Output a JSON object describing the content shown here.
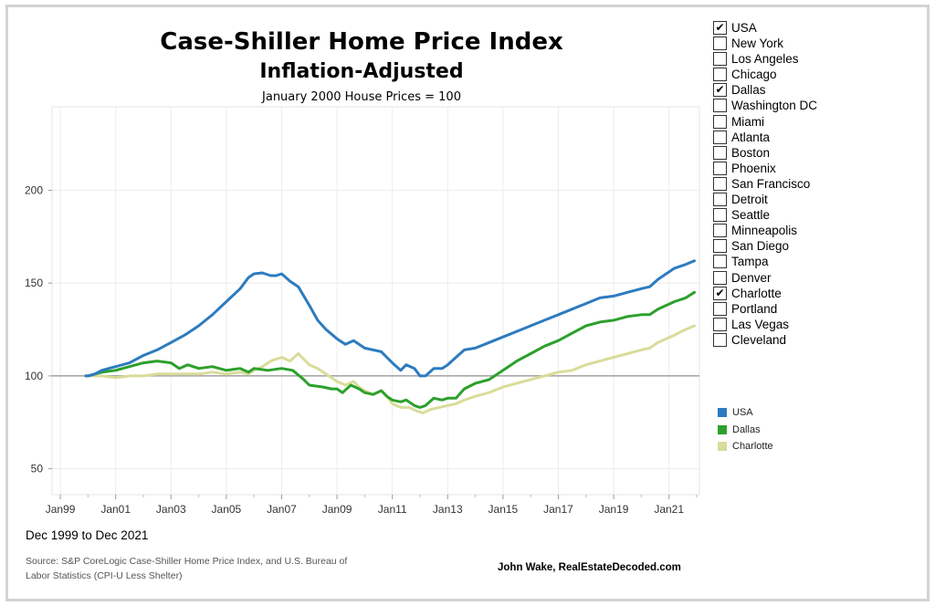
{
  "header": {
    "title": "Case-Shiller Home Price Index",
    "subtitle": "Inflation-Adjusted",
    "note": "January 2000 House Prices = 100"
  },
  "filters": [
    {
      "label": "USA",
      "checked": true
    },
    {
      "label": "New York",
      "checked": false
    },
    {
      "label": "Los Angeles",
      "checked": false
    },
    {
      "label": "Chicago",
      "checked": false
    },
    {
      "label": "Dallas",
      "checked": true
    },
    {
      "label": "Washington DC",
      "checked": false
    },
    {
      "label": "Miami",
      "checked": false
    },
    {
      "label": "Atlanta",
      "checked": false
    },
    {
      "label": "Boston",
      "checked": false
    },
    {
      "label": "Phoenix",
      "checked": false
    },
    {
      "label": "San Francisco",
      "checked": false
    },
    {
      "label": "Detroit",
      "checked": false
    },
    {
      "label": "Seattle",
      "checked": false
    },
    {
      "label": "Minneapolis",
      "checked": false
    },
    {
      "label": "San Diego",
      "checked": false
    },
    {
      "label": "Tampa",
      "checked": false
    },
    {
      "label": "Denver",
      "checked": false
    },
    {
      "label": "Charlotte",
      "checked": true
    },
    {
      "label": "Portland",
      "checked": false
    },
    {
      "label": "Las Vegas",
      "checked": false
    },
    {
      "label": "Cleveland",
      "checked": false
    }
  ],
  "check_glyph": "✔",
  "footer": {
    "date_range": "Dec 1999 to Dec 2021",
    "source": "Source: S&P CoreLogic Case-Shiller Home Price Index, and U.S. Bureau of Labor Statistics (CPI-U Less Shelter)",
    "author": "John Wake, RealEstateDecoded.com"
  },
  "chart_data": {
    "type": "line",
    "title": "Case-Shiller Home Price Index",
    "subtitle": "Inflation-Adjusted",
    "note": "January 2000 House Prices = 100",
    "xlim": [
      1998.7,
      2022.1
    ],
    "ylim": [
      36,
      245
    ],
    "yticks": [
      50,
      100,
      150,
      200
    ],
    "xticks": [
      {
        "value": 1999,
        "label": "Jan99"
      },
      {
        "value": 2001,
        "label": "Jan01"
      },
      {
        "value": 2003,
        "label": "Jan03"
      },
      {
        "value": 2005,
        "label": "Jan05"
      },
      {
        "value": 2007,
        "label": "Jan07"
      },
      {
        "value": 2009,
        "label": "Jan09"
      },
      {
        "value": 2011,
        "label": "Jan11"
      },
      {
        "value": 2013,
        "label": "Jan13"
      },
      {
        "value": 2015,
        "label": "Jan15"
      },
      {
        "value": 2017,
        "label": "Jan17"
      },
      {
        "value": 2019,
        "label": "Jan19"
      },
      {
        "value": 2021,
        "label": "Jan21"
      }
    ],
    "reference_line": 100,
    "grid": true,
    "legend_position": "right",
    "series": [
      {
        "name": "USA",
        "color": "#2d7bbf",
        "points": [
          [
            1999.92,
            100
          ],
          [
            2000.0,
            100
          ],
          [
            2000.25,
            101
          ],
          [
            2000.5,
            103
          ],
          [
            2000.75,
            104
          ],
          [
            2001.0,
            105
          ],
          [
            2001.5,
            107
          ],
          [
            2002.0,
            111
          ],
          [
            2002.5,
            114
          ],
          [
            2003.0,
            118
          ],
          [
            2003.5,
            122
          ],
          [
            2004.0,
            127
          ],
          [
            2004.5,
            133
          ],
          [
            2005.0,
            140
          ],
          [
            2005.5,
            147
          ],
          [
            2005.8,
            153
          ],
          [
            2006.0,
            155
          ],
          [
            2006.3,
            155.5
          ],
          [
            2006.6,
            154
          ],
          [
            2006.8,
            154
          ],
          [
            2007.0,
            155
          ],
          [
            2007.3,
            151
          ],
          [
            2007.6,
            148
          ],
          [
            2008.0,
            138
          ],
          [
            2008.3,
            130
          ],
          [
            2008.6,
            125
          ],
          [
            2009.0,
            120
          ],
          [
            2009.3,
            117
          ],
          [
            2009.6,
            119
          ],
          [
            2010.0,
            115
          ],
          [
            2010.3,
            114
          ],
          [
            2010.6,
            113
          ],
          [
            2010.8,
            110
          ],
          [
            2011.0,
            107
          ],
          [
            2011.3,
            103
          ],
          [
            2011.5,
            106
          ],
          [
            2011.8,
            104
          ],
          [
            2012.0,
            100
          ],
          [
            2012.2,
            100
          ],
          [
            2012.5,
            104
          ],
          [
            2012.8,
            104
          ],
          [
            2013.0,
            106
          ],
          [
            2013.3,
            110
          ],
          [
            2013.6,
            114
          ],
          [
            2014.0,
            115
          ],
          [
            2014.5,
            118
          ],
          [
            2015.0,
            121
          ],
          [
            2015.5,
            124
          ],
          [
            2016.0,
            127
          ],
          [
            2016.5,
            130
          ],
          [
            2017.0,
            133
          ],
          [
            2017.5,
            136
          ],
          [
            2018.0,
            139
          ],
          [
            2018.5,
            142
          ],
          [
            2019.0,
            143
          ],
          [
            2019.5,
            145
          ],
          [
            2020.0,
            147
          ],
          [
            2020.3,
            148
          ],
          [
            2020.6,
            152
          ],
          [
            2020.9,
            155
          ],
          [
            2021.2,
            158
          ],
          [
            2021.6,
            160
          ],
          [
            2021.92,
            162
          ]
        ]
      },
      {
        "name": "Dallas",
        "color": "#2ca02c",
        "points": [
          [
            1999.92,
            100
          ],
          [
            2000.0,
            100
          ],
          [
            2000.25,
            101
          ],
          [
            2000.5,
            102
          ],
          [
            2001.0,
            103
          ],
          [
            2001.5,
            105
          ],
          [
            2002.0,
            107
          ],
          [
            2002.5,
            108
          ],
          [
            2003.0,
            107
          ],
          [
            2003.3,
            104
          ],
          [
            2003.6,
            106
          ],
          [
            2004.0,
            104
          ],
          [
            2004.5,
            105
          ],
          [
            2005.0,
            103
          ],
          [
            2005.5,
            104
          ],
          [
            2005.8,
            102
          ],
          [
            2006.0,
            104
          ],
          [
            2006.5,
            103
          ],
          [
            2007.0,
            104
          ],
          [
            2007.4,
            103
          ],
          [
            2007.8,
            98
          ],
          [
            2008.0,
            95
          ],
          [
            2008.5,
            94
          ],
          [
            2008.8,
            93
          ],
          [
            2009.0,
            93
          ],
          [
            2009.2,
            91
          ],
          [
            2009.5,
            95
          ],
          [
            2009.8,
            93
          ],
          [
            2010.0,
            91
          ],
          [
            2010.3,
            90
          ],
          [
            2010.6,
            92
          ],
          [
            2010.8,
            89
          ],
          [
            2011.0,
            87
          ],
          [
            2011.3,
            86
          ],
          [
            2011.5,
            87
          ],
          [
            2011.8,
            84
          ],
          [
            2012.0,
            83
          ],
          [
            2012.2,
            84
          ],
          [
            2012.5,
            88
          ],
          [
            2012.8,
            87
          ],
          [
            2013.0,
            88
          ],
          [
            2013.3,
            88
          ],
          [
            2013.6,
            93
          ],
          [
            2014.0,
            96
          ],
          [
            2014.5,
            98
          ],
          [
            2015.0,
            103
          ],
          [
            2015.5,
            108
          ],
          [
            2016.0,
            112
          ],
          [
            2016.5,
            116
          ],
          [
            2017.0,
            119
          ],
          [
            2017.5,
            123
          ],
          [
            2018.0,
            127
          ],
          [
            2018.5,
            129
          ],
          [
            2019.0,
            130
          ],
          [
            2019.5,
            132
          ],
          [
            2020.0,
            133
          ],
          [
            2020.3,
            133
          ],
          [
            2020.6,
            136
          ],
          [
            2020.9,
            138
          ],
          [
            2021.2,
            140
          ],
          [
            2021.6,
            142
          ],
          [
            2021.92,
            145
          ]
        ]
      },
      {
        "name": "Charlotte",
        "color": "#d9dc9a",
        "points": [
          [
            1999.92,
            100
          ],
          [
            2000.0,
            100
          ],
          [
            2000.5,
            100
          ],
          [
            2001.0,
            99
          ],
          [
            2001.5,
            100
          ],
          [
            2002.0,
            100
          ],
          [
            2002.5,
            101
          ],
          [
            2003.0,
            101
          ],
          [
            2003.5,
            101
          ],
          [
            2004.0,
            101
          ],
          [
            2004.5,
            102
          ],
          [
            2005.0,
            101
          ],
          [
            2005.5,
            102
          ],
          [
            2005.8,
            101
          ],
          [
            2006.0,
            103
          ],
          [
            2006.3,
            105
          ],
          [
            2006.6,
            108
          ],
          [
            2007.0,
            110
          ],
          [
            2007.3,
            108
          ],
          [
            2007.6,
            112
          ],
          [
            2008.0,
            106
          ],
          [
            2008.3,
            104
          ],
          [
            2008.6,
            101
          ],
          [
            2009.0,
            97
          ],
          [
            2009.3,
            95
          ],
          [
            2009.6,
            97
          ],
          [
            2009.8,
            94
          ],
          [
            2010.0,
            92
          ],
          [
            2010.3,
            90
          ],
          [
            2010.6,
            92
          ],
          [
            2010.8,
            89
          ],
          [
            2011.0,
            85
          ],
          [
            2011.3,
            83
          ],
          [
            2011.6,
            83
          ],
          [
            2011.9,
            81
          ],
          [
            2012.1,
            80
          ],
          [
            2012.4,
            82
          ],
          [
            2012.7,
            83
          ],
          [
            2013.0,
            84
          ],
          [
            2013.3,
            85
          ],
          [
            2013.6,
            87
          ],
          [
            2014.0,
            89
          ],
          [
            2014.5,
            91
          ],
          [
            2015.0,
            94
          ],
          [
            2015.5,
            96
          ],
          [
            2016.0,
            98
          ],
          [
            2016.5,
            100
          ],
          [
            2017.0,
            102
          ],
          [
            2017.5,
            103
          ],
          [
            2018.0,
            106
          ],
          [
            2018.5,
            108
          ],
          [
            2019.0,
            110
          ],
          [
            2019.5,
            112
          ],
          [
            2020.0,
            114
          ],
          [
            2020.3,
            115
          ],
          [
            2020.6,
            118
          ],
          [
            2020.9,
            120
          ],
          [
            2021.2,
            122
          ],
          [
            2021.6,
            125
          ],
          [
            2021.92,
            127
          ]
        ]
      }
    ]
  }
}
